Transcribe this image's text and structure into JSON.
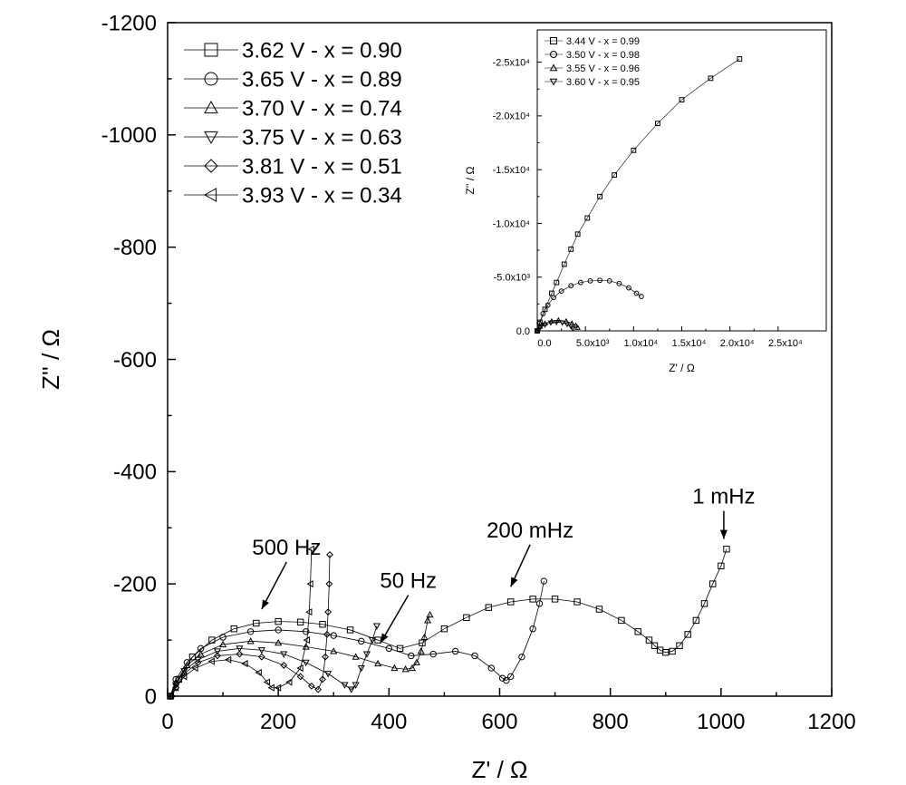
{
  "chart_data": [
    {
      "type": "scatter",
      "xlabel": "Z' / Ω",
      "ylabel": "Z'' / Ω",
      "xlim": [
        0,
        1200
      ],
      "ylim": [
        0,
        -1200
      ],
      "x_ticks": [
        "0",
        "200",
        "400",
        "600",
        "800",
        "1000",
        "1200"
      ],
      "y_ticks": [
        "0",
        "-200",
        "-400",
        "-600",
        "-800",
        "-1000",
        "-1200"
      ],
      "legend_position": "top-left",
      "series": [
        {
          "name": "3.62 V - x = 0.90",
          "marker": "square",
          "points": [
            [
              5,
              0
            ],
            [
              20,
              -30
            ],
            [
              45,
              -70
            ],
            [
              80,
              -100
            ],
            [
              120,
              -120
            ],
            [
              160,
              -130
            ],
            [
              200,
              -133
            ],
            [
              240,
              -132
            ],
            [
              280,
              -128
            ],
            [
              330,
              -118
            ],
            [
              380,
              -100
            ],
            [
              420,
              -85
            ],
            [
              460,
              -95
            ],
            [
              500,
              -120
            ],
            [
              540,
              -140
            ],
            [
              580,
              -158
            ],
            [
              620,
              -168
            ],
            [
              660,
              -173
            ],
            [
              700,
              -173
            ],
            [
              740,
              -168
            ],
            [
              780,
              -155
            ],
            [
              820,
              -135
            ],
            [
              850,
              -115
            ],
            [
              870,
              -100
            ],
            [
              880,
              -90
            ],
            [
              890,
              -82
            ],
            [
              900,
              -78
            ],
            [
              912,
              -80
            ],
            [
              925,
              -90
            ],
            [
              940,
              -110
            ],
            [
              955,
              -135
            ],
            [
              970,
              -165
            ],
            [
              985,
              -200
            ],
            [
              1000,
              -232
            ],
            [
              1010,
              -262
            ]
          ]
        },
        {
          "name": "3.65 V - x = 0.89",
          "marker": "circle",
          "points": [
            [
              5,
              0
            ],
            [
              15,
              -30
            ],
            [
              35,
              -60
            ],
            [
              60,
              -85
            ],
            [
              100,
              -105
            ],
            [
              150,
              -115
            ],
            [
              200,
              -118
            ],
            [
              250,
              -115
            ],
            [
              300,
              -108
            ],
            [
              350,
              -98
            ],
            [
              400,
              -85
            ],
            [
              440,
              -72
            ],
            [
              480,
              -75
            ],
            [
              520,
              -80
            ],
            [
              555,
              -72
            ],
            [
              585,
              -50
            ],
            [
              605,
              -32
            ],
            [
              612,
              -28
            ],
            [
              620,
              -35
            ],
            [
              640,
              -70
            ],
            [
              660,
              -120
            ],
            [
              672,
              -165
            ],
            [
              680,
              -205
            ]
          ]
        },
        {
          "name": "3.70 V - x = 0.74",
          "marker": "triangle-up",
          "points": [
            [
              5,
              0
            ],
            [
              15,
              -25
            ],
            [
              35,
              -55
            ],
            [
              60,
              -75
            ],
            [
              100,
              -92
            ],
            [
              150,
              -98
            ],
            [
              200,
              -95
            ],
            [
              250,
              -88
            ],
            [
              300,
              -80
            ],
            [
              340,
              -70
            ],
            [
              380,
              -58
            ],
            [
              410,
              -50
            ],
            [
              430,
              -48
            ],
            [
              442,
              -50
            ],
            [
              450,
              -60
            ],
            [
              458,
              -80
            ],
            [
              464,
              -105
            ],
            [
              470,
              -135
            ],
            [
              474,
              -145
            ]
          ]
        },
        {
          "name": "3.75 V - x = 0.63",
          "marker": "triangle-down",
          "points": [
            [
              5,
              0
            ],
            [
              15,
              -20
            ],
            [
              30,
              -45
            ],
            [
              55,
              -65
            ],
            [
              90,
              -80
            ],
            [
              130,
              -85
            ],
            [
              170,
              -82
            ],
            [
              210,
              -75
            ],
            [
              250,
              -60
            ],
            [
              290,
              -40
            ],
            [
              320,
              -20
            ],
            [
              332,
              -12
            ],
            [
              340,
              -20
            ],
            [
              350,
              -50
            ],
            [
              360,
              -75
            ],
            [
              370,
              -100
            ],
            [
              378,
              -125
            ]
          ]
        },
        {
          "name": "3.81 V - x = 0.51",
          "marker": "diamond",
          "points": [
            [
              8,
              0
            ],
            [
              15,
              -15
            ],
            [
              30,
              -40
            ],
            [
              55,
              -60
            ],
            [
              90,
              -72
            ],
            [
              130,
              -75
            ],
            [
              170,
              -70
            ],
            [
              210,
              -55
            ],
            [
              240,
              -35
            ],
            [
              260,
              -18
            ],
            [
              272,
              -12
            ],
            [
              280,
              -30
            ],
            [
              285,
              -70
            ],
            [
              288,
              -110
            ],
            [
              290,
              -150
            ],
            [
              292,
              -200
            ],
            [
              293,
              -252
            ]
          ]
        },
        {
          "name": "3.93 V - x = 0.34",
          "marker": "triangle-left",
          "points": [
            [
              5,
              0
            ],
            [
              15,
              -15
            ],
            [
              30,
              -35
            ],
            [
              50,
              -50
            ],
            [
              80,
              -62
            ],
            [
              110,
              -65
            ],
            [
              140,
              -58
            ],
            [
              165,
              -42
            ],
            [
              180,
              -25
            ],
            [
              188,
              -15
            ],
            [
              200,
              -15
            ],
            [
              220,
              -25
            ],
            [
              240,
              -50
            ],
            [
              252,
              -100
            ],
            [
              256,
              -150
            ],
            [
              258,
              -200
            ],
            [
              260,
              -262
            ]
          ]
        }
      ],
      "annotations": [
        {
          "text": "500 Hz",
          "x": 215,
          "y": -252,
          "points_to": [
            170,
            -155
          ]
        },
        {
          "text": "50 Hz",
          "x": 435,
          "y": -193,
          "points_to": [
            385,
            -95
          ]
        },
        {
          "text": "200 mHz",
          "x": 655,
          "y": -283,
          "points_to": [
            620,
            -195
          ]
        },
        {
          "text": "1 mHz",
          "x": 1005,
          "y": -343,
          "points_to": [
            1005,
            -280
          ]
        }
      ]
    },
    {
      "type": "scatter",
      "role": "inset",
      "xlabel": "Z' / Ω",
      "ylabel": "Z'' / Ω",
      "xlim": [
        0,
        30000
      ],
      "ylim": [
        0,
        -28000
      ],
      "x_tick_values": [
        0,
        5000,
        10000,
        15000,
        20000,
        25000
      ],
      "x_ticks": [
        "0.0",
        "5.0x10³",
        "1.0x10⁴",
        "1.5x10⁴",
        "2.0x10⁴",
        "2.5x10⁴"
      ],
      "y_tick_values": [
        0,
        -5000,
        -10000,
        -15000,
        -20000,
        -25000
      ],
      "y_ticks": [
        "0.0",
        "-5.0x10³",
        "-1.0x10⁴",
        "-1.5x10⁴",
        "-2.0x10⁴",
        "-2.5x10⁴"
      ],
      "legend_position": "top-left",
      "series": [
        {
          "name": "3.44 V - x = 0.99",
          "marker": "square",
          "points": [
            [
              0,
              0
            ],
            [
              300,
              -800
            ],
            [
              800,
              -2000
            ],
            [
              1500,
              -3500
            ],
            [
              2000,
              -4500
            ],
            [
              2800,
              -6200
            ],
            [
              3500,
              -7600
            ],
            [
              4200,
              -9000
            ],
            [
              5200,
              -10500
            ],
            [
              6500,
              -12500
            ],
            [
              8000,
              -14500
            ],
            [
              10000,
              -16800
            ],
            [
              12500,
              -19300
            ],
            [
              15000,
              -21500
            ],
            [
              18000,
              -23500
            ],
            [
              21000,
              -25300
            ]
          ]
        },
        {
          "name": "3.50 V - x = 0.98",
          "marker": "circle",
          "points": [
            [
              0,
              0
            ],
            [
              200,
              -700
            ],
            [
              600,
              -1600
            ],
            [
              1100,
              -2400
            ],
            [
              1700,
              -3100
            ],
            [
              2500,
              -3700
            ],
            [
              3500,
              -4200
            ],
            [
              4500,
              -4500
            ],
            [
              5500,
              -4650
            ],
            [
              6500,
              -4700
            ],
            [
              7500,
              -4650
            ],
            [
              8500,
              -4400
            ],
            [
              9500,
              -4000
            ],
            [
              10300,
              -3500
            ],
            [
              10800,
              -3200
            ]
          ]
        },
        {
          "name": "3.55 V - x = 0.96",
          "marker": "triangle-up",
          "points": [
            [
              0,
              0
            ],
            [
              300,
              -400
            ],
            [
              800,
              -700
            ],
            [
              1500,
              -900
            ],
            [
              2200,
              -1000
            ],
            [
              3000,
              -900
            ],
            [
              3600,
              -700
            ],
            [
              4000,
              -500
            ],
            [
              4200,
              -300
            ]
          ]
        },
        {
          "name": "3.60 V - x = 0.95",
          "marker": "triangle-down",
          "points": [
            [
              0,
              0
            ],
            [
              300,
              -300
            ],
            [
              800,
              -550
            ],
            [
              1400,
              -750
            ],
            [
              2000,
              -800
            ],
            [
              2600,
              -750
            ],
            [
              3100,
              -600
            ],
            [
              3500,
              -400
            ],
            [
              3700,
              -200
            ]
          ]
        }
      ]
    }
  ]
}
